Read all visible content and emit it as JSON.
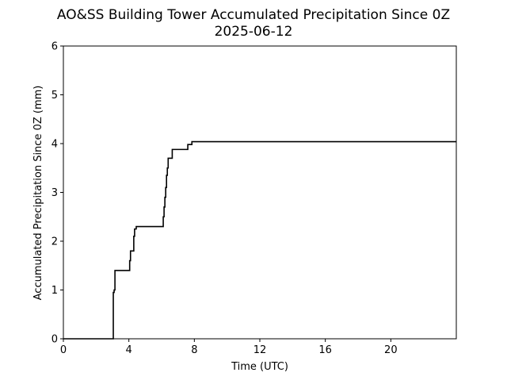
{
  "chart_data": {
    "type": "line",
    "title": "AO&SS Building Tower Accumulated Precipitation Since 0Z",
    "subtitle": "2025-06-12",
    "xlabel": "Time (UTC)",
    "ylabel": "Accumulated Precipitation Since 0Z (mm)",
    "xlim": [
      0,
      24
    ],
    "ylim": [
      0,
      6
    ],
    "grid": false,
    "legend": "none",
    "x_ticks": [
      0,
      4,
      8,
      12,
      16,
      20
    ],
    "y_ticks": [
      0,
      1,
      2,
      3,
      4,
      5,
      6
    ],
    "series": [
      {
        "color": "#000000",
        "x": [
          0,
          3.05,
          3.05,
          3.1,
          3.1,
          3.15,
          3.15,
          4.05,
          4.05,
          4.1,
          4.1,
          4.15,
          4.15,
          4.3,
          4.3,
          4.35,
          4.35,
          4.45,
          4.45,
          6.1,
          6.1,
          6.15,
          6.15,
          6.2,
          6.2,
          6.25,
          6.25,
          6.3,
          6.3,
          6.35,
          6.35,
          6.4,
          6.4,
          6.45,
          6.45,
          6.65,
          6.65,
          7.6,
          7.6,
          7.85,
          7.85,
          24
        ],
        "y": [
          0,
          0,
          0.95,
          0.95,
          1.0,
          1.0,
          1.4,
          1.4,
          1.6,
          1.6,
          1.8,
          1.8,
          1.8,
          1.8,
          2.1,
          2.1,
          2.25,
          2.25,
          2.3,
          2.3,
          2.5,
          2.5,
          2.7,
          2.7,
          2.9,
          2.9,
          3.1,
          3.1,
          3.35,
          3.35,
          3.5,
          3.5,
          3.7,
          3.7,
          3.7,
          3.7,
          3.88,
          3.88,
          3.98,
          3.98,
          4.04,
          4.04
        ]
      }
    ]
  }
}
